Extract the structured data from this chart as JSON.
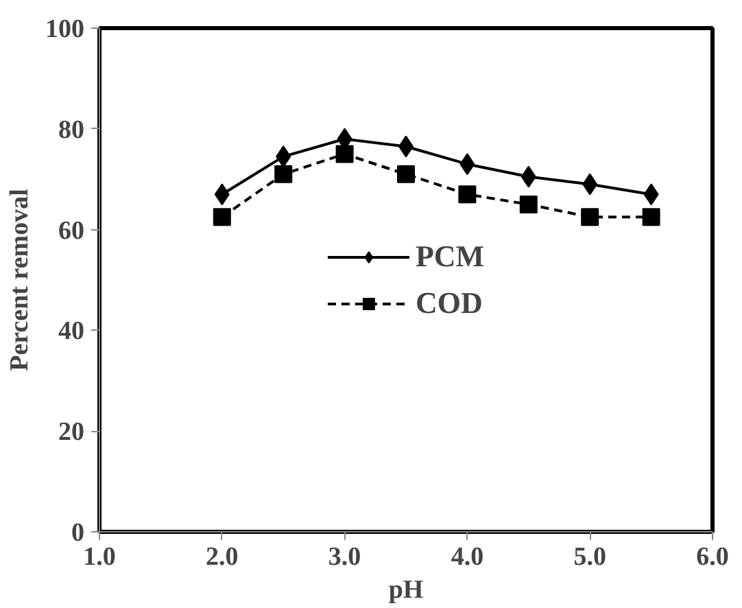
{
  "chart_data": {
    "type": "line",
    "xlabel": "pH",
    "ylabel": "Percent removal",
    "x": [
      2.0,
      2.5,
      3.0,
      3.5,
      4.0,
      4.5,
      5.0,
      5.5
    ],
    "series": [
      {
        "name": "PCM",
        "color": "#000000",
        "marker": "diamond",
        "line_style": "solid",
        "values": [
          67,
          74.5,
          78,
          76.5,
          73,
          70.5,
          69,
          67
        ]
      },
      {
        "name": "COD",
        "color": "#000000",
        "marker": "square",
        "line_style": "dashed",
        "values": [
          62.5,
          71,
          75,
          71,
          67,
          65,
          62.5,
          62.5
        ]
      }
    ],
    "xlim": [
      1.0,
      6.0
    ],
    "xticks": [
      {
        "value": 1,
        "label": "1.0"
      },
      {
        "value": 2,
        "label": "2.0"
      },
      {
        "value": 3,
        "label": "3.0"
      },
      {
        "value": 4,
        "label": "4.0"
      },
      {
        "value": 5,
        "label": "5.0"
      },
      {
        "value": 6,
        "label": "6.0"
      }
    ],
    "ylim": [
      0,
      100
    ],
    "yticks": [
      0,
      20,
      40,
      60,
      80,
      100
    ],
    "grid": false,
    "legend": "center"
  }
}
